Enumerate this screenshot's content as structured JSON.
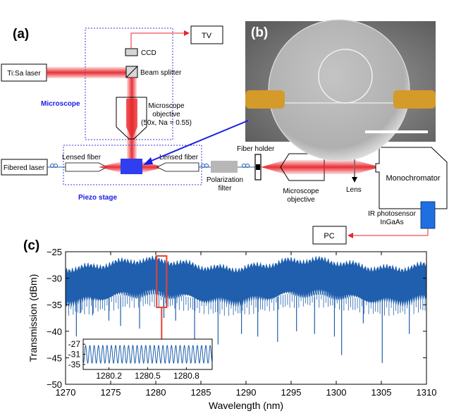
{
  "panels": {
    "a": "(a)",
    "b": "(b)",
    "c": "(c)"
  },
  "setup": {
    "tv": "TV",
    "ccd": "CCD",
    "laser": "Ti:Sa laser",
    "beam_splitter": "Beam splitter",
    "microscope": "Microscope",
    "objective_lines": [
      "Microscope",
      "objective",
      "(50x, Na = 0.55)"
    ],
    "fibered_laser": "Fibered laser",
    "lensed_fiber_left": "Lensed fiber",
    "lensed_fiber_right": "Lensed fiber",
    "piezo_stage": "Piezo stage",
    "polarization_lines": [
      "Polarization",
      "filter"
    ],
    "fiber_holder": "Fiber holder",
    "objective2_lines": [
      "Microscope",
      "objective"
    ],
    "lens": "Lens",
    "monochromator": "Monochromator",
    "photosensor_lines": [
      "IR photosensor",
      "InGaAs"
    ],
    "pc": "PC"
  },
  "colors": {
    "accent_blue": "#1a1ae6",
    "beam_red": "#e8252b",
    "trace_blue": "#1f5fad",
    "inset_red": "#e8412e",
    "gold": "#d49a2a"
  },
  "chart_data": [
    {
      "type": "line",
      "xlabel": "Wavelength (nm)",
      "ylabel": "Transmission (dBm)",
      "xlim": [
        1270,
        1310
      ],
      "ylim": [
        -50,
        -25
      ],
      "x_ticks": [
        1270,
        1275,
        1280,
        1285,
        1290,
        1295,
        1300,
        1305,
        1310
      ],
      "y_ticks": [
        -50,
        -45,
        -40,
        -35,
        -30,
        -25
      ],
      "baseline_upper_dBm": -27.5,
      "baseline_lower_dBm": -33.5,
      "dips": [
        {
          "x": 1271.2,
          "y": -41
        },
        {
          "x": 1271.7,
          "y": -36.5
        },
        {
          "x": 1273.0,
          "y": -37
        },
        {
          "x": 1274.8,
          "y": -38
        },
        {
          "x": 1276.1,
          "y": -39
        },
        {
          "x": 1278.2,
          "y": -39.5
        },
        {
          "x": 1280.9,
          "y": -37.5
        },
        {
          "x": 1282.2,
          "y": -38
        },
        {
          "x": 1284.3,
          "y": -43
        },
        {
          "x": 1286.9,
          "y": -42.5
        },
        {
          "x": 1289.5,
          "y": -40.5
        },
        {
          "x": 1291.3,
          "y": -41
        },
        {
          "x": 1293.5,
          "y": -42
        },
        {
          "x": 1295.6,
          "y": -40
        },
        {
          "x": 1297.6,
          "y": -40.5
        },
        {
          "x": 1299.8,
          "y": -41
        },
        {
          "x": 1300.6,
          "y": -44.5
        },
        {
          "x": 1303.0,
          "y": -38.5
        },
        {
          "x": 1305.1,
          "y": -46
        },
        {
          "x": 1308.1,
          "y": -40.5
        }
      ],
      "highlight_range": [
        1280.1,
        1281.2
      ]
    },
    {
      "type": "line",
      "xlim": [
        1280.0,
        1281.0
      ],
      "ylim": [
        -37,
        -25
      ],
      "x_ticks": [
        1280.2,
        1280.5,
        1280.8
      ],
      "y_ticks": [
        -27,
        -31,
        -35
      ],
      "oscillation": {
        "center": -31,
        "amplitude": 3.5,
        "period": 0.0333
      }
    }
  ]
}
